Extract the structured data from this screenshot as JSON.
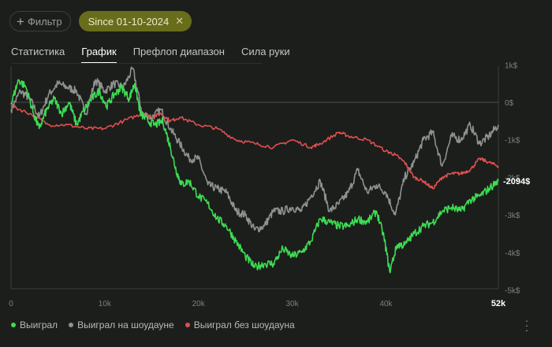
{
  "toolbar": {
    "filter_label": "Фильтр",
    "chip_label": "Since 01-10-2024"
  },
  "tabs": [
    "Статистика",
    "График",
    "Префлоп диапазон",
    "Сила руки"
  ],
  "active_tab": "График",
  "chart_data": {
    "type": "line",
    "x_unit": "hands",
    "x_ticks": [
      "0",
      "10k",
      "20k",
      "30k",
      "40k"
    ],
    "x_end_label": "52k",
    "y_ticks": [
      "1k$",
      "0$",
      "-1k$",
      "-2k$",
      "-3k$",
      "-4k$",
      "-5k$"
    ],
    "ylim": [
      -5000,
      1000
    ],
    "xlim": [
      0,
      52000
    ],
    "highlight_value_label": "-2094$",
    "series": [
      {
        "name": "Выиграл",
        "color": "#3ddc52",
        "points": [
          [
            0,
            -50
          ],
          [
            800,
            600
          ],
          [
            1600,
            400
          ],
          [
            2400,
            -300
          ],
          [
            3000,
            -700
          ],
          [
            3800,
            -200
          ],
          [
            4600,
            100
          ],
          [
            5400,
            -300
          ],
          [
            6200,
            0
          ],
          [
            7000,
            -600
          ],
          [
            7800,
            -200
          ],
          [
            8600,
            100
          ],
          [
            9400,
            300
          ],
          [
            10200,
            -100
          ],
          [
            11000,
            200
          ],
          [
            11800,
            400
          ],
          [
            12600,
            100
          ],
          [
            13200,
            500
          ],
          [
            13800,
            -300
          ],
          [
            14600,
            -500
          ],
          [
            15400,
            -600
          ],
          [
            16200,
            -500
          ],
          [
            17000,
            -1200
          ],
          [
            17600,
            -1800
          ],
          [
            18200,
            -2200
          ],
          [
            19000,
            -2100
          ],
          [
            20000,
            -2500
          ],
          [
            21000,
            -2700
          ],
          [
            22000,
            -3100
          ],
          [
            23000,
            -3300
          ],
          [
            24000,
            -3700
          ],
          [
            25000,
            -4100
          ],
          [
            26000,
            -4400
          ],
          [
            27000,
            -4300
          ],
          [
            28000,
            -4300
          ],
          [
            29000,
            -3900
          ],
          [
            30000,
            -4100
          ],
          [
            31000,
            -4000
          ],
          [
            32000,
            -3700
          ],
          [
            33000,
            -3100
          ],
          [
            34000,
            -3200
          ],
          [
            35000,
            -3300
          ],
          [
            36000,
            -3300
          ],
          [
            37000,
            -3100
          ],
          [
            38000,
            -3200
          ],
          [
            39000,
            -2900
          ],
          [
            39800,
            -3600
          ],
          [
            40400,
            -4500
          ],
          [
            41200,
            -3800
          ],
          [
            42000,
            -3800
          ],
          [
            43000,
            -3500
          ],
          [
            44000,
            -3300
          ],
          [
            45000,
            -3200
          ],
          [
            46000,
            -2900
          ],
          [
            47000,
            -2800
          ],
          [
            48000,
            -2900
          ],
          [
            49000,
            -2600
          ],
          [
            50000,
            -2500
          ],
          [
            51000,
            -2300
          ],
          [
            52000,
            -2094
          ]
        ]
      },
      {
        "name": "Выиграл на шоудауне",
        "color": "#8f928f",
        "points": [
          [
            0,
            -200
          ],
          [
            1000,
            300
          ],
          [
            2000,
            100
          ],
          [
            3000,
            -400
          ],
          [
            4000,
            200
          ],
          [
            5000,
            500
          ],
          [
            6000,
            400
          ],
          [
            7000,
            300
          ],
          [
            8000,
            -300
          ],
          [
            9000,
            600
          ],
          [
            10000,
            300
          ],
          [
            11000,
            500
          ],
          [
            12000,
            400
          ],
          [
            13000,
            900
          ],
          [
            14000,
            -300
          ],
          [
            15000,
            -400
          ],
          [
            16000,
            -200
          ],
          [
            17000,
            -700
          ],
          [
            18000,
            -1100
          ],
          [
            19000,
            -1500
          ],
          [
            20000,
            -1500
          ],
          [
            21000,
            -2200
          ],
          [
            22000,
            -2300
          ],
          [
            23000,
            -2400
          ],
          [
            24000,
            -2900
          ],
          [
            25000,
            -3000
          ],
          [
            26000,
            -3400
          ],
          [
            27000,
            -3300
          ],
          [
            28000,
            -2900
          ],
          [
            29000,
            -2900
          ],
          [
            30000,
            -2800
          ],
          [
            31000,
            -2900
          ],
          [
            32000,
            -2500
          ],
          [
            33000,
            -2100
          ],
          [
            34000,
            -2900
          ],
          [
            35000,
            -2700
          ],
          [
            36000,
            -2400
          ],
          [
            37000,
            -1800
          ],
          [
            38000,
            -2400
          ],
          [
            39000,
            -2200
          ],
          [
            40000,
            -2400
          ],
          [
            41000,
            -3000
          ],
          [
            42000,
            -2000
          ],
          [
            43000,
            -1600
          ],
          [
            44000,
            -1000
          ],
          [
            45000,
            -800
          ],
          [
            46000,
            -1700
          ],
          [
            47000,
            -900
          ],
          [
            48000,
            -1000
          ],
          [
            49000,
            -600
          ],
          [
            50000,
            -1100
          ],
          [
            51000,
            -900
          ],
          [
            52000,
            -600
          ]
        ]
      },
      {
        "name": "Выиграл без шоудауна",
        "color": "#e05050",
        "points": [
          [
            0,
            -100
          ],
          [
            2000,
            -300
          ],
          [
            4000,
            -600
          ],
          [
            6000,
            -600
          ],
          [
            8000,
            -700
          ],
          [
            10000,
            -700
          ],
          [
            12000,
            -500
          ],
          [
            14000,
            -300
          ],
          [
            15000,
            -400
          ],
          [
            16000,
            -300
          ],
          [
            17000,
            -500
          ],
          [
            18000,
            -400
          ],
          [
            20000,
            -600
          ],
          [
            22000,
            -700
          ],
          [
            24000,
            -1000
          ],
          [
            26000,
            -1100
          ],
          [
            28000,
            -1200
          ],
          [
            30000,
            -1000
          ],
          [
            32000,
            -1200
          ],
          [
            33000,
            -1100
          ],
          [
            35000,
            -800
          ],
          [
            36000,
            -900
          ],
          [
            38000,
            -1000
          ],
          [
            40000,
            -1300
          ],
          [
            41000,
            -1400
          ],
          [
            42000,
            -1600
          ],
          [
            43000,
            -2000
          ],
          [
            44000,
            -2100
          ],
          [
            45000,
            -2300
          ],
          [
            46000,
            -2000
          ],
          [
            47000,
            -1900
          ],
          [
            48000,
            -1900
          ],
          [
            49000,
            -1800
          ],
          [
            50000,
            -1500
          ],
          [
            51000,
            -1600
          ],
          [
            52000,
            -1700
          ]
        ]
      }
    ]
  },
  "legend": [
    "Выиграл",
    "Выиграл на шоудауне",
    "Выиграл без шоудауна"
  ],
  "colors": {
    "won": "#3ddc52",
    "showdown": "#8f928f",
    "non_showdown": "#e05050",
    "chip_bg": "#686d1c"
  }
}
